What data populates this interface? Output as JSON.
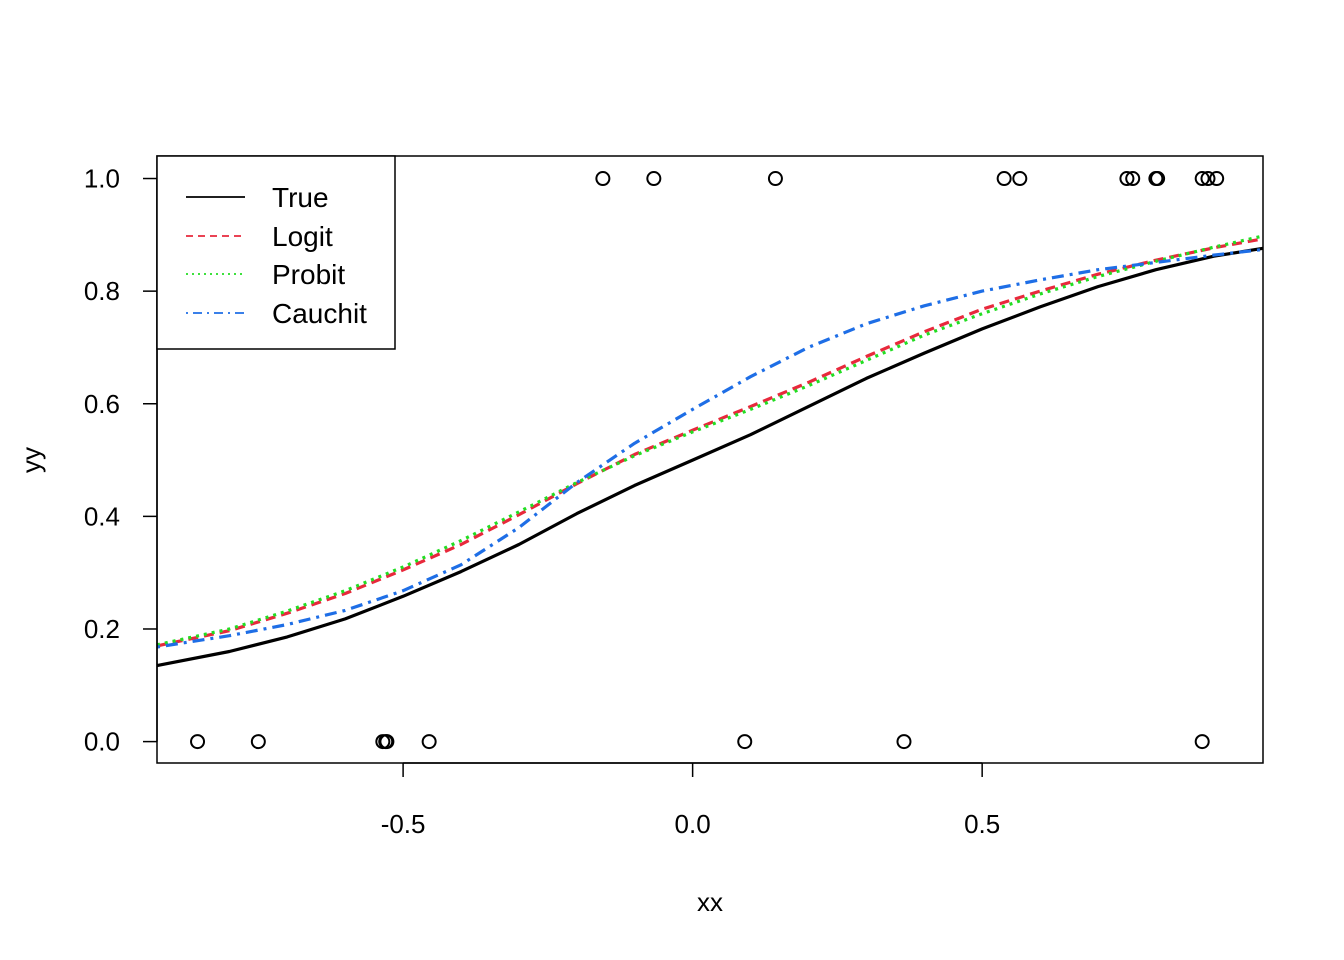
{
  "chart_data": {
    "type": "line",
    "title": "",
    "xlabel": "xx",
    "ylabel": "yy",
    "xlim": [
      -0.925,
      0.985
    ],
    "ylim": [
      -0.038,
      1.04
    ],
    "x_ticks": [
      -0.5,
      0.0,
      0.5
    ],
    "x_tick_labels": [
      "-0.5",
      "0.0",
      "0.5"
    ],
    "y_ticks": [
      0.0,
      0.2,
      0.4,
      0.6,
      0.8,
      1.0
    ],
    "y_tick_labels": [
      "0.0",
      "0.2",
      "0.4",
      "0.6",
      "0.8",
      "1.0"
    ],
    "grid": false,
    "legend_position": "top-left",
    "series": [
      {
        "name": "True",
        "style": "solid",
        "color": "#000000",
        "x": [
          -0.925,
          -0.8,
          -0.7,
          -0.6,
          -0.5,
          -0.4,
          -0.3,
          -0.2,
          -0.1,
          0.0,
          0.1,
          0.2,
          0.3,
          0.4,
          0.5,
          0.6,
          0.7,
          0.8,
          0.9,
          0.985
        ],
        "y": [
          0.135,
          0.16,
          0.186,
          0.218,
          0.258,
          0.302,
          0.35,
          0.405,
          0.455,
          0.5,
          0.545,
          0.595,
          0.645,
          0.69,
          0.733,
          0.772,
          0.808,
          0.838,
          0.862,
          0.876
        ]
      },
      {
        "name": "Logit",
        "style": "dashed",
        "color": "#E8293C",
        "x": [
          -0.925,
          -0.8,
          -0.7,
          -0.6,
          -0.5,
          -0.4,
          -0.3,
          -0.2,
          -0.1,
          0.0,
          0.1,
          0.2,
          0.3,
          0.4,
          0.5,
          0.6,
          0.7,
          0.8,
          0.9,
          0.985
        ],
        "y": [
          0.17,
          0.197,
          0.228,
          0.263,
          0.305,
          0.35,
          0.403,
          0.458,
          0.51,
          0.553,
          0.595,
          0.638,
          0.684,
          0.728,
          0.768,
          0.8,
          0.83,
          0.855,
          0.877,
          0.893
        ]
      },
      {
        "name": "Probit",
        "style": "dotted",
        "color": "#22DD22",
        "x": [
          -0.925,
          -0.8,
          -0.7,
          -0.6,
          -0.5,
          -0.4,
          -0.3,
          -0.2,
          -0.1,
          0.0,
          0.1,
          0.2,
          0.3,
          0.4,
          0.5,
          0.6,
          0.7,
          0.8,
          0.9,
          0.985
        ],
        "y": [
          0.172,
          0.2,
          0.232,
          0.268,
          0.31,
          0.357,
          0.408,
          0.46,
          0.508,
          0.55,
          0.59,
          0.632,
          0.677,
          0.722,
          0.76,
          0.795,
          0.826,
          0.853,
          0.878,
          0.898
        ]
      },
      {
        "name": "Cauchit",
        "style": "dotdash",
        "color": "#1E6EE6",
        "x": [
          -0.925,
          -0.8,
          -0.7,
          -0.6,
          -0.5,
          -0.4,
          -0.3,
          -0.2,
          -0.1,
          0.0,
          0.1,
          0.2,
          0.3,
          0.4,
          0.5,
          0.6,
          0.7,
          0.8,
          0.9,
          0.985
        ],
        "y": [
          0.168,
          0.188,
          0.208,
          0.233,
          0.268,
          0.314,
          0.38,
          0.46,
          0.53,
          0.59,
          0.648,
          0.7,
          0.742,
          0.774,
          0.8,
          0.82,
          0.838,
          0.851,
          0.864,
          0.874
        ]
      }
    ],
    "points": {
      "x": [
        -0.855,
        -0.75,
        -0.535,
        -0.53,
        -0.528,
        -0.455,
        -0.155,
        -0.067,
        0.09,
        0.143,
        0.365,
        0.538,
        0.565,
        0.75,
        0.76,
        0.8,
        0.803,
        0.88,
        0.89,
        0.905,
        0.88
      ],
      "y": [
        0,
        0,
        0,
        0,
        0,
        0,
        1,
        1,
        0,
        1,
        0,
        1,
        1,
        1,
        1,
        1,
        1,
        0,
        1,
        1,
        1
      ]
    }
  }
}
